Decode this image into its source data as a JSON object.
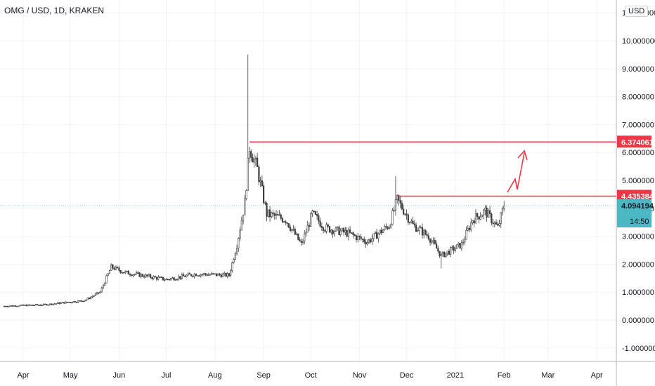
{
  "header": {
    "symbol_title": "OMG / USD, 1D, KRAKEN",
    "currency": "USD"
  },
  "colors": {
    "up": "#26a69a",
    "down": "#ef5350",
    "candle_edge": "#3d3d3d",
    "axis_text": "#131722",
    "grid": "#f0f3fa",
    "resistance": "#f23645",
    "last_price": "#4cb8c4",
    "arrow": "#f23645"
  },
  "chart_data": {
    "type": "candlestick",
    "title": "OMG / USD, 1D, KRAKEN",
    "x_ticks": [
      "Apr",
      "May",
      "Jun",
      "Jul",
      "Aug",
      "Sep",
      "Oct",
      "Nov",
      "Dec",
      "2021",
      "Feb",
      "Mar",
      "Apr"
    ],
    "y_tick_labels": [
      "-1.000000",
      "0.000000",
      "1.000000",
      "2.000000",
      "3.000000",
      "4.000000",
      "5.000000",
      "6.000000",
      "7.000000",
      "8.000000",
      "9.000000",
      "10.000000",
      "11.000000"
    ],
    "ylim": [
      -1.6,
      11.3
    ],
    "grid": true,
    "price_path": [
      {
        "date": "2020-03-20",
        "close": 0.5
      },
      {
        "date": "2020-04-15",
        "close": 0.55
      },
      {
        "date": "2020-05-10",
        "close": 0.7
      },
      {
        "date": "2020-05-20",
        "close": 1.0
      },
      {
        "date": "2020-05-27",
        "close": 1.9
      },
      {
        "date": "2020-06-05",
        "close": 1.7
      },
      {
        "date": "2020-07-01",
        "close": 1.45
      },
      {
        "date": "2020-07-20",
        "close": 1.65
      },
      {
        "date": "2020-08-10",
        "close": 1.6
      },
      {
        "date": "2020-08-15",
        "close": 2.7
      },
      {
        "date": "2020-08-20",
        "close": 4.2
      },
      {
        "date": "2020-08-23",
        "close": 6.2
      },
      {
        "date": "2020-08-28",
        "close": 5.4
      },
      {
        "date": "2020-09-03",
        "close": 3.8
      },
      {
        "date": "2020-09-15",
        "close": 3.6
      },
      {
        "date": "2020-09-25",
        "close": 2.7
      },
      {
        "date": "2020-10-02",
        "close": 3.8
      },
      {
        "date": "2020-10-10",
        "close": 3.3
      },
      {
        "date": "2020-10-25",
        "close": 3.1
      },
      {
        "date": "2020-11-06",
        "close": 2.8
      },
      {
        "date": "2020-11-20",
        "close": 3.4
      },
      {
        "date": "2020-11-25",
        "close": 4.3
      },
      {
        "date": "2020-12-05",
        "close": 3.4
      },
      {
        "date": "2020-12-15",
        "close": 3.0
      },
      {
        "date": "2020-12-23",
        "close": 2.3
      },
      {
        "date": "2021-01-05",
        "close": 2.7
      },
      {
        "date": "2021-01-12",
        "close": 3.6
      },
      {
        "date": "2021-01-20",
        "close": 3.9
      },
      {
        "date": "2021-01-28",
        "close": 3.3
      },
      {
        "date": "2021-02-01",
        "close": 4.09
      }
    ],
    "notable_highs": [
      {
        "date": "2020-08-22",
        "high": 9.5
      },
      {
        "date": "2020-11-24",
        "high": 5.15
      }
    ],
    "notable_lows": [
      {
        "date": "2020-12-23",
        "low": 1.85
      }
    ],
    "annotations": {
      "resistance_high": {
        "value": 6.374061,
        "label": "6.374061",
        "from_date": "2020-08-23"
      },
      "resistance_mid": {
        "value": 4.435384,
        "label": "4.435384",
        "from_date": "2020-11-25"
      },
      "last_price": {
        "value": 4.094194,
        "label": "4.094194",
        "countdown": "14:50"
      },
      "projection_arrow": "zigzag up toward 6.0"
    }
  }
}
